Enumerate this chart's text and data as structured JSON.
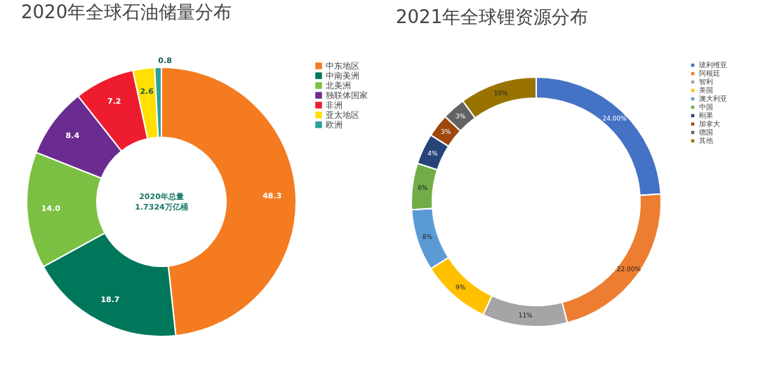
{
  "chart_data": [
    {
      "type": "donut",
      "title": "2020年全球石油储量分布",
      "categories": [
        "中东地区",
        "中南美洲",
        "北美洲",
        "独联体国家",
        "非洲",
        "亚太地区",
        "欧洲"
      ],
      "values": [
        48.3,
        18.7,
        14.0,
        8.4,
        7.2,
        2.6,
        0.8
      ],
      "value_labels": [
        "48.3",
        "18.7",
        "14.0",
        "8.4",
        "7.2",
        "2.6",
        "0.8"
      ],
      "colors": [
        "#f47b20",
        "#00765a",
        "#7bc043",
        "#6a2c91",
        "#ed1c2e",
        "#ffe000",
        "#2aa198"
      ],
      "annotations": [
        "2020年总量",
        "1.7324万亿桶"
      ],
      "legend": "right"
    },
    {
      "type": "donut",
      "title": "2021年全球锂资源分布",
      "categories": [
        "玻利维亚",
        "阿根廷",
        "智利",
        "美国",
        "澳大利亚",
        "中国",
        "刚果",
        "加拿大",
        "德国",
        "其他"
      ],
      "values": [
        24,
        22,
        11,
        9,
        8,
        6,
        4,
        3,
        3,
        10
      ],
      "value_labels": [
        "24.00%",
        "22.00%",
        "11%",
        "9%",
        "8%",
        "6%",
        "4%",
        "3%",
        "3%",
        "10%"
      ],
      "colors": [
        "#4472c4",
        "#ed7d31",
        "#a5a5a5",
        "#ffc000",
        "#5b9bd5",
        "#70ad47",
        "#264478",
        "#9e480e",
        "#636363",
        "#997300"
      ],
      "legend": "right"
    }
  ]
}
